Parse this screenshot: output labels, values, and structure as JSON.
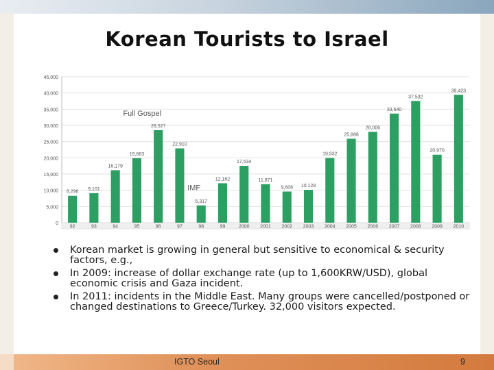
{
  "title": "Korean Tourists to Israel",
  "chart_data": {
    "type": "bar",
    "categories": [
      "92",
      "93",
      "94",
      "95",
      "96",
      "97",
      "98",
      "99",
      "2000",
      "2001",
      "2002",
      "2003",
      "2004",
      "2005",
      "2006",
      "2007",
      "2008",
      "2009",
      "2010"
    ],
    "values": [
      8296,
      9101,
      16179,
      19863,
      28527,
      22910,
      5317,
      12162,
      17534,
      11871,
      9608,
      10128,
      19932,
      25888,
      28006,
      33640,
      37532,
      20970,
      39423
    ],
    "value_labels": [
      "8,296",
      "9,101",
      "16,179",
      "19,863",
      "28,527",
      "22,910",
      "5,317",
      "12,162",
      "17,534",
      "11,871",
      "9,608",
      "10,128",
      "19,932",
      "25,888",
      "28,006",
      "33,640",
      "37,532",
      "20,970",
      "39,423"
    ],
    "y_ticks": [
      0,
      5000,
      10000,
      15000,
      20000,
      25000,
      30000,
      35000,
      40000,
      45000
    ],
    "y_tick_labels": [
      "0",
      "5,000",
      "10,000",
      "15,000",
      "20,000",
      "25,000",
      "30,000",
      "35,000",
      "40,000",
      "45,000"
    ],
    "ylim": [
      0,
      45000
    ],
    "annotations": [
      {
        "text": "Full Gospel",
        "x": "95",
        "y": 33000
      },
      {
        "text": "IMF",
        "x": "98",
        "y": 10000
      }
    ],
    "grid": true,
    "bar_color": "#2e9f62",
    "xlabel": "",
    "ylabel": ""
  },
  "bullets": [
    "Korean market is growing in general but sensitive to economical & security factors, e.g.,",
    "In 2009: increase of dollar exchange rate (up to 1,600KRW/USD), global economic crisis and Gaza incident.",
    "In 2011: incidents in the Middle East.  Many groups were cancelled/postponed or changed destinations to Greece/Turkey.  32,000 visitors expected."
  ],
  "footer": {
    "text": "IGTO Seoul",
    "page_number": "9"
  }
}
